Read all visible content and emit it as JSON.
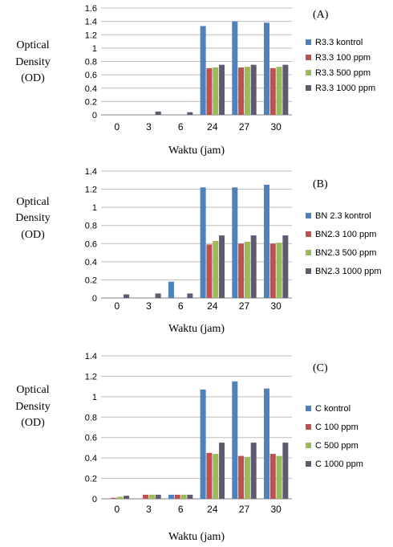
{
  "chart_data": [
    {
      "type": "bar",
      "panel_label": "(A)",
      "ylabel_lines": [
        "Optical",
        "Density",
        "(OD)"
      ],
      "xlabel": "Waktu (jam)",
      "categories": [
        "0",
        "3",
        "6",
        "24",
        "27",
        "30"
      ],
      "ylim": [
        0,
        1.6
      ],
      "yticks": [
        "0",
        "0.2",
        "0.4",
        "0.6",
        "0.8",
        "1",
        "1.2",
        "1.4",
        "1.6"
      ],
      "grid": true,
      "legend_position": "right",
      "series": [
        {
          "name": "R3.3 kontrol",
          "color": "#4F81BD",
          "values": [
            0.0,
            0.0,
            0.0,
            1.33,
            1.4,
            1.38
          ]
        },
        {
          "name": "R3.3 100 ppm",
          "color": "#C0504D",
          "values": [
            0.0,
            0.0,
            0.0,
            0.7,
            0.71,
            0.7
          ]
        },
        {
          "name": "R3.3 500 ppm",
          "color": "#9BBB59",
          "values": [
            0.0,
            0.0,
            0.0,
            0.71,
            0.72,
            0.72
          ]
        },
        {
          "name": "R3.3 1000 ppm",
          "color": "#5F5A70",
          "values": [
            0.0,
            0.05,
            0.04,
            0.75,
            0.75,
            0.75
          ]
        }
      ]
    },
    {
      "type": "bar",
      "panel_label": "(B)",
      "ylabel_lines": [
        "Optical",
        "Density",
        "(OD)"
      ],
      "xlabel": "Waktu (jam)",
      "categories": [
        "0",
        "3",
        "6",
        "24",
        "27",
        "30"
      ],
      "ylim": [
        0,
        1.4
      ],
      "yticks": [
        "0",
        "0.2",
        "0.4",
        "0.6",
        "0.8",
        "1",
        "1.2",
        "1.4"
      ],
      "grid": true,
      "legend_position": "right",
      "series": [
        {
          "name": "BN 2.3 kontrol",
          "color": "#4F81BD",
          "values": [
            0.0,
            0.0,
            0.18,
            1.22,
            1.22,
            1.25
          ]
        },
        {
          "name": "BN2.3 100 ppm",
          "color": "#C0504D",
          "values": [
            0.0,
            0.0,
            0.0,
            0.59,
            0.6,
            0.6
          ]
        },
        {
          "name": "BN2.3 500 ppm",
          "color": "#9BBB59",
          "values": [
            0.0,
            0.0,
            0.0,
            0.63,
            0.62,
            0.61
          ]
        },
        {
          "name": "BN2.3 1000 ppm",
          "color": "#5F5A70",
          "values": [
            0.04,
            0.05,
            0.05,
            0.69,
            0.69,
            0.69
          ]
        }
      ]
    },
    {
      "type": "bar",
      "panel_label": "(C)",
      "ylabel_lines": [
        "Optical",
        "Density",
        "(OD)"
      ],
      "xlabel": "Waktu (jam)",
      "categories": [
        "0",
        "3",
        "6",
        "24",
        "27",
        "30"
      ],
      "ylim": [
        0,
        1.4
      ],
      "yticks": [
        "0",
        "0.2",
        "0.4",
        "0.6",
        "0.8",
        "1",
        "1.2",
        "1.4"
      ],
      "grid": true,
      "legend_position": "right",
      "series": [
        {
          "name": "C kontrol",
          "color": "#4F81BD",
          "values": [
            0.0,
            0.0,
            0.04,
            1.07,
            1.15,
            1.08
          ]
        },
        {
          "name": "C 100 ppm",
          "color": "#C0504D",
          "values": [
            0.01,
            0.04,
            0.04,
            0.45,
            0.42,
            0.44
          ]
        },
        {
          "name": "C 500 ppm",
          "color": "#9BBB59",
          "values": [
            0.02,
            0.04,
            0.04,
            0.44,
            0.41,
            0.42
          ]
        },
        {
          "name": "C 1000 ppm",
          "color": "#5F5A70",
          "values": [
            0.03,
            0.04,
            0.04,
            0.55,
            0.55,
            0.55
          ]
        }
      ]
    }
  ]
}
